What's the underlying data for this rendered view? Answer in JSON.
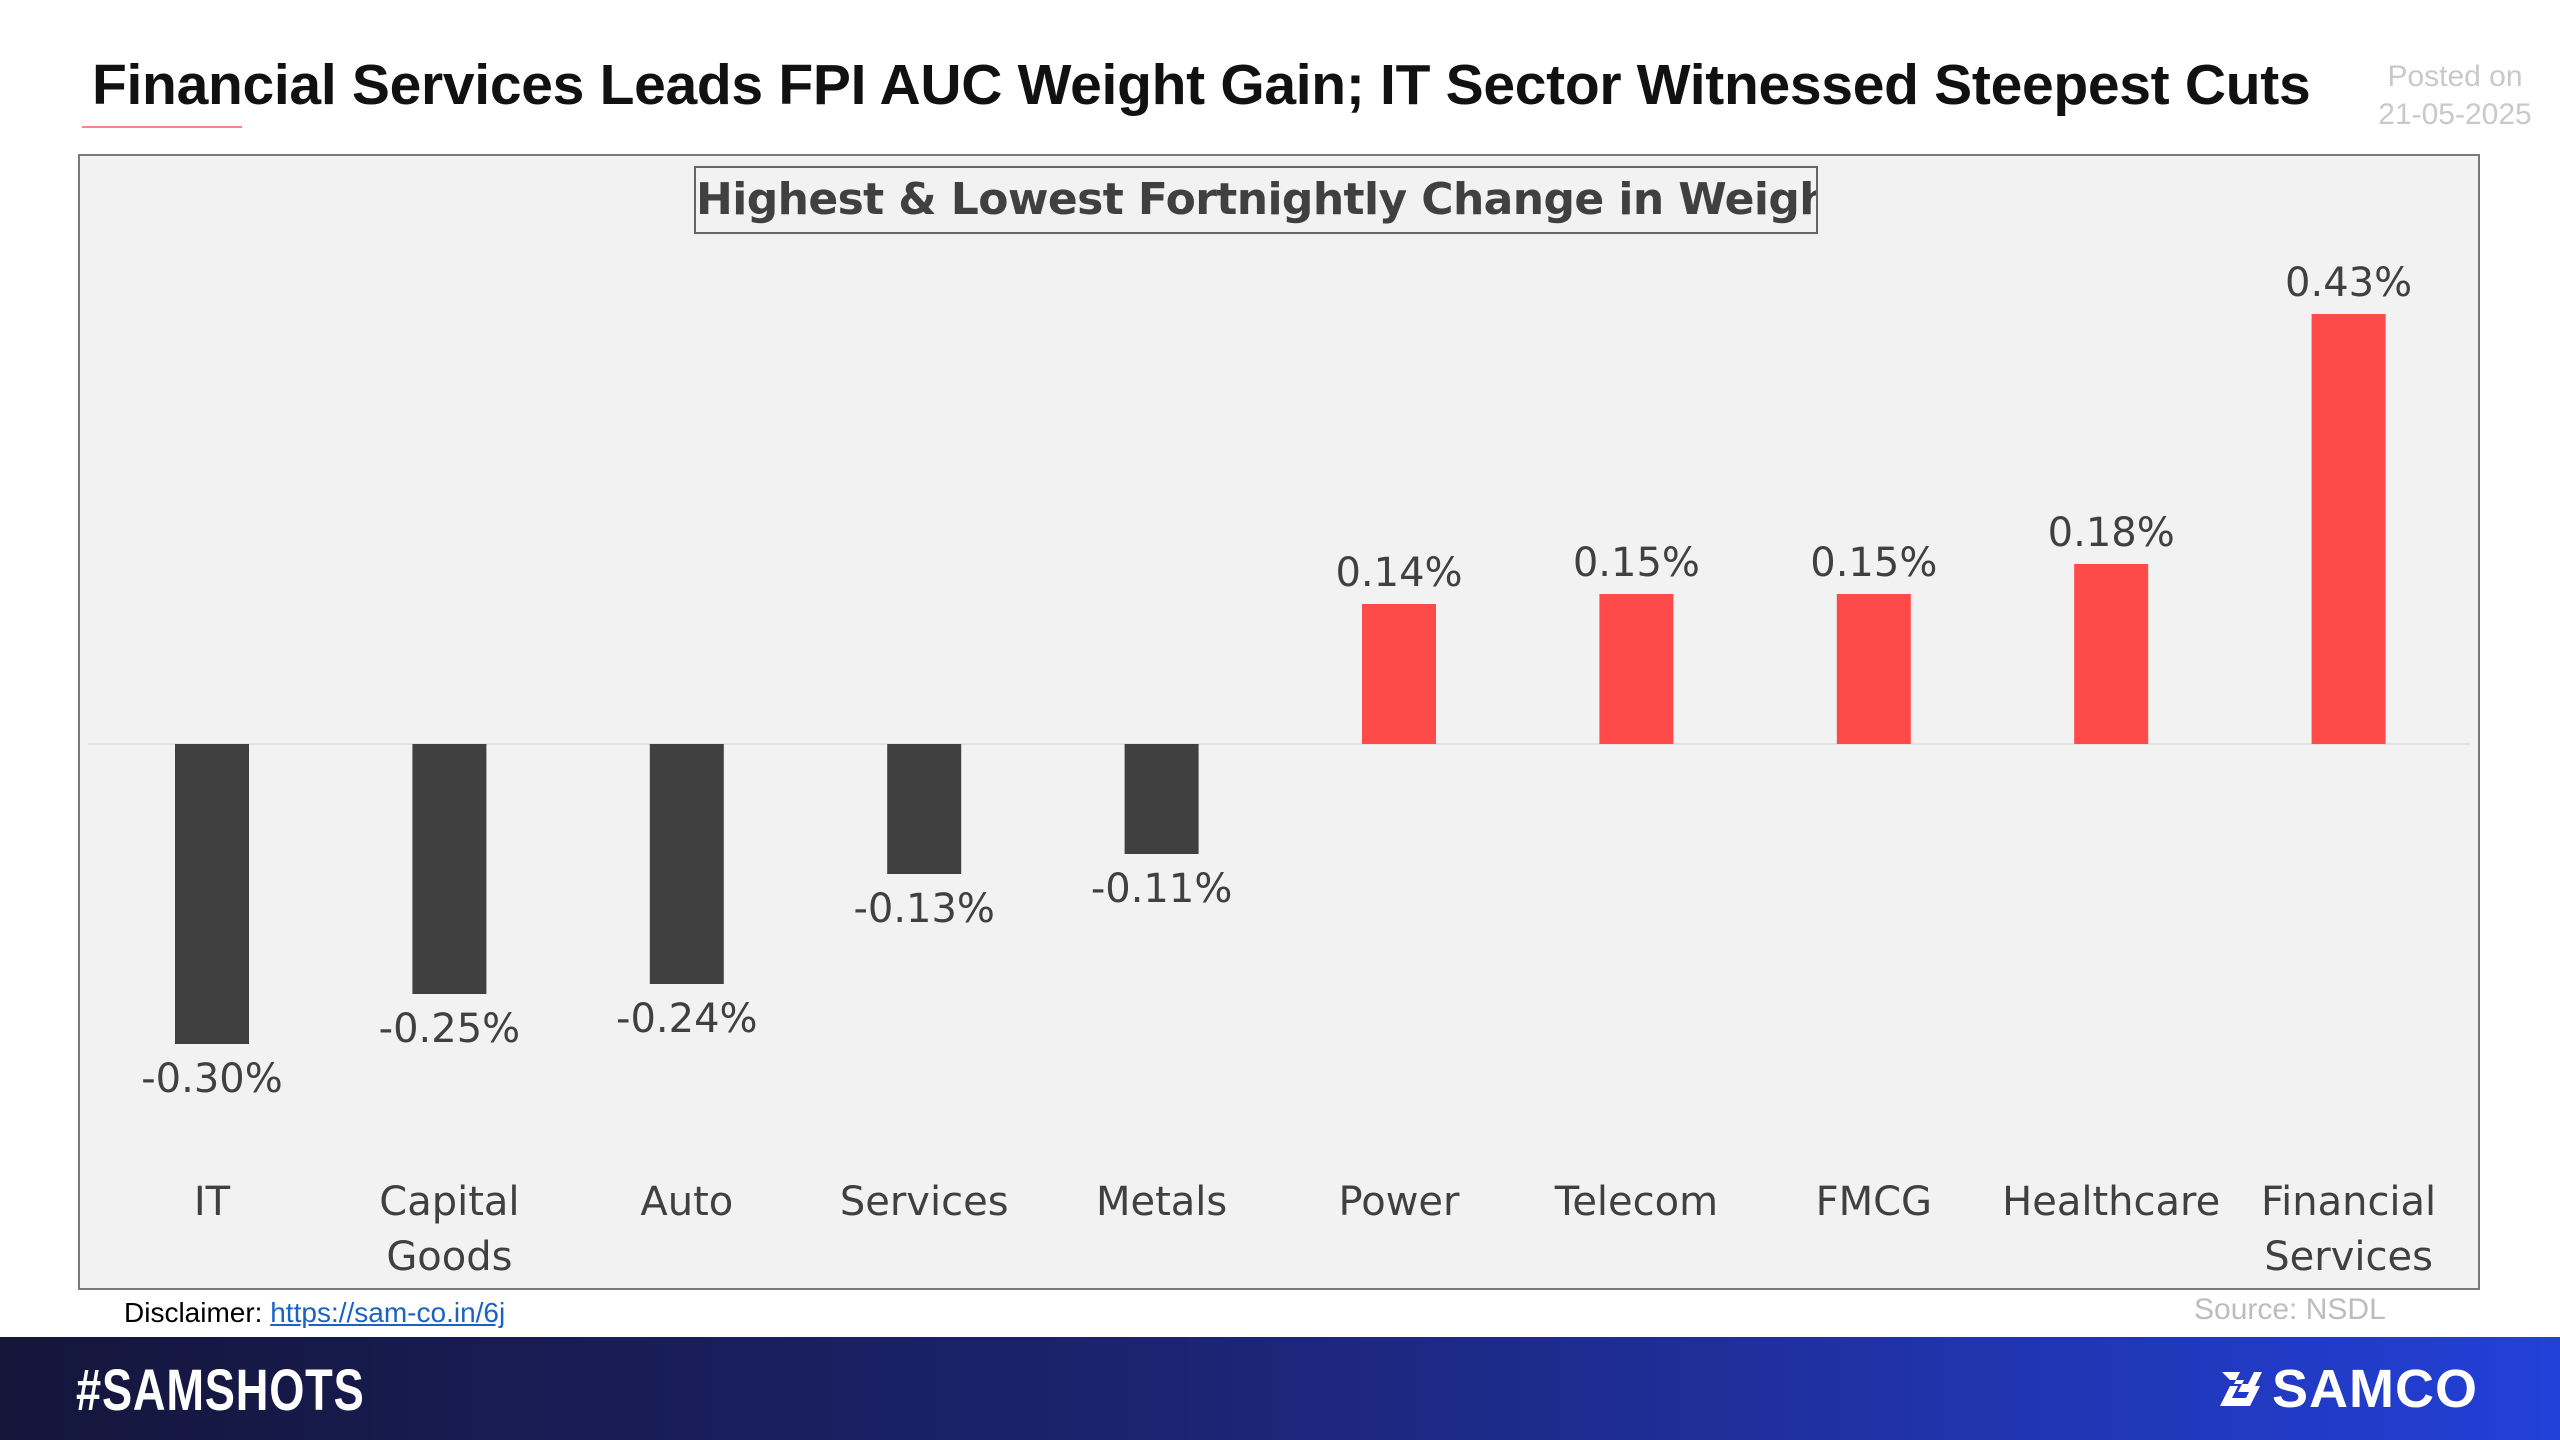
{
  "header": {
    "title": "Financial Services Leads FPI AUC Weight Gain; IT Sector Witnessed Steepest Cuts",
    "posted_label": "Posted on",
    "posted_date": "21-05-2025"
  },
  "chart_data": {
    "type": "bar",
    "title": "Highest & Lowest Fortnightly Change in Weightage",
    "xlabel": "",
    "ylabel": "",
    "categories": [
      [
        "IT"
      ],
      [
        "Capital",
        "Goods"
      ],
      [
        "Auto"
      ],
      [
        "Services"
      ],
      [
        "Metals"
      ],
      [
        "Power"
      ],
      [
        "Telecom"
      ],
      [
        "FMCG"
      ],
      [
        "Healthcare"
      ],
      [
        "Financial",
        "Services"
      ]
    ],
    "values": [
      -0.3,
      -0.25,
      -0.24,
      -0.13,
      -0.11,
      0.14,
      0.15,
      0.15,
      0.18,
      0.43
    ],
    "value_labels": [
      "-0.30%",
      "-0.25%",
      "-0.24%",
      "-0.13%",
      "-0.11%",
      "0.14%",
      "0.15%",
      "0.15%",
      "0.18%",
      "0.43%"
    ],
    "ylim": [
      -0.4,
      0.46
    ],
    "grid": false,
    "legend": "none",
    "colors": {
      "negative": "#404040",
      "positive": "#ff4a4a",
      "background": "#f2f2f2",
      "labels": "#404040"
    }
  },
  "footer_notes": {
    "disclaimer_label": "Disclaimer: ",
    "disclaimer_link": "https://sam-co.in/6j",
    "source": "Source: NSDL"
  },
  "footer": {
    "hashtag": "#SAMSHOTS",
    "brand": "SAMCO",
    "brand_icon": "samco-logo-icon"
  }
}
